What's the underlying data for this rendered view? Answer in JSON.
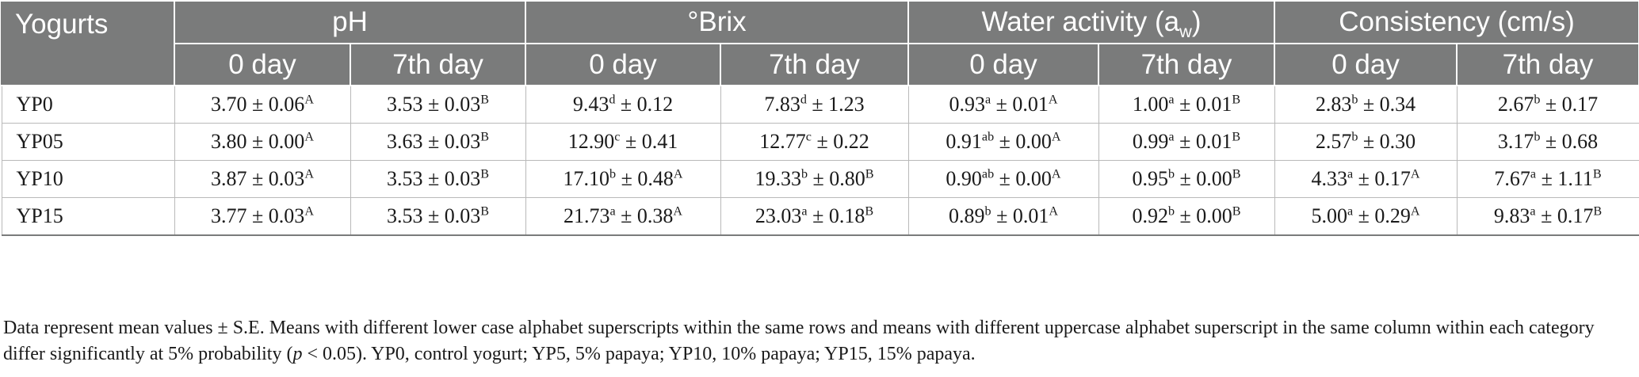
{
  "table": {
    "row_header": "Yogurts",
    "groups": [
      {
        "label": "pH"
      },
      {
        "label": "°Brix"
      },
      {
        "label": "Water activity (a",
        "sub": "w",
        "close": ")"
      },
      {
        "label": "Consistency (cm/s)"
      }
    ],
    "subheaders": [
      "0 day",
      "7th day",
      "0 day",
      "7th day",
      "0 day",
      "7th day",
      "0 day",
      "7th day"
    ],
    "rows": [
      {
        "label": "YP0",
        "cells": [
          {
            "v": "3.70 ± 0.06",
            "sup": "A"
          },
          {
            "v": "3.53 ± 0.03",
            "sup": "B"
          },
          {
            "v": "9.43",
            "sup": "d",
            "rest": " ± 0.12"
          },
          {
            "v": "7.83",
            "sup": "d",
            "rest": " ± 1.23"
          },
          {
            "v": "0.93",
            "sup": "a",
            "rest": " ± 0.01",
            "sup2": "A"
          },
          {
            "v": "1.00",
            "sup": "a",
            "rest": " ± 0.01",
            "sup2": "B"
          },
          {
            "v": "2.83",
            "sup": "b",
            "rest": " ± 0.34"
          },
          {
            "v": "2.67",
            "sup": "b",
            "rest": " ± 0.17"
          }
        ]
      },
      {
        "label": "YP05",
        "cells": [
          {
            "v": "3.80 ± 0.00",
            "sup": "A"
          },
          {
            "v": "3.63 ± 0.03",
            "sup": "B"
          },
          {
            "v": "12.90",
            "sup": "c",
            "rest": " ± 0.41"
          },
          {
            "v": "12.77",
            "sup": "c",
            "rest": " ± 0.22"
          },
          {
            "v": "0.91",
            "sup": "ab",
            "rest": " ± 0.00",
            "sup2": "A"
          },
          {
            "v": "0.99",
            "sup": "a",
            "rest": " ± 0.01",
            "sup2": "B"
          },
          {
            "v": "2.57",
            "sup": "b",
            "rest": " ± 0.30"
          },
          {
            "v": "3.17",
            "sup": "b",
            "rest": " ± 0.68"
          }
        ]
      },
      {
        "label": "YP10",
        "cells": [
          {
            "v": "3.87 ± 0.03",
            "sup": "A"
          },
          {
            "v": "3.53 ± 0.03",
            "sup": "B"
          },
          {
            "v": "17.10",
            "sup": "b",
            "rest": " ± 0.48",
            "sup2": "A"
          },
          {
            "v": "19.33",
            "sup": "b",
            "rest": " ± 0.80",
            "sup2": "B"
          },
          {
            "v": "0.90",
            "sup": "ab",
            "rest": " ± 0.00",
            "sup2": "A"
          },
          {
            "v": "0.95",
            "sup": "b",
            "rest": " ± 0.00",
            "sup2": "B"
          },
          {
            "v": "4.33",
            "sup": "a",
            "rest": " ± 0.17",
            "sup2": "A"
          },
          {
            "v": "7.67",
            "sup": "a",
            "rest": " ± 1.11",
            "sup2": "B"
          }
        ]
      },
      {
        "label": "YP15",
        "cells": [
          {
            "v": "3.77 ± 0.03",
            "sup": "A"
          },
          {
            "v": "3.53 ± 0.03",
            "sup": "B"
          },
          {
            "v": "21.73",
            "sup": "a",
            "rest": " ± 0.38",
            "sup2": "A"
          },
          {
            "v": "23.03",
            "sup": "a",
            "rest": " ± 0.18",
            "sup2": "B"
          },
          {
            "v": "0.89",
            "sup": "b",
            "rest": " ± 0.01",
            "sup2": "A"
          },
          {
            "v": "0.92",
            "sup": "b",
            "rest": " ± 0.00",
            "sup2": "B"
          },
          {
            "v": "5.00",
            "sup": "a",
            "rest": " ± 0.29",
            "sup2": "A"
          },
          {
            "v": "9.83",
            "sup": "a",
            "rest": " ± 0.17",
            "sup2": "B"
          }
        ]
      }
    ]
  },
  "footnote": {
    "part1": "Data represent mean values ± S.E. Means with different lower case alphabet superscripts within the same rows and means with different uppercase alphabet superscript in the same column within each category differ significantly at 5% probability (",
    "p": "p",
    "part2": " < 0.05). YP0, control yogurt; YP5, 5% papaya; YP10, 10% papaya; YP15, 15% papaya."
  },
  "colors": {
    "header_bg": "#7a7b7b",
    "header_text": "#ffffff",
    "grid": "#b9b9b9"
  }
}
